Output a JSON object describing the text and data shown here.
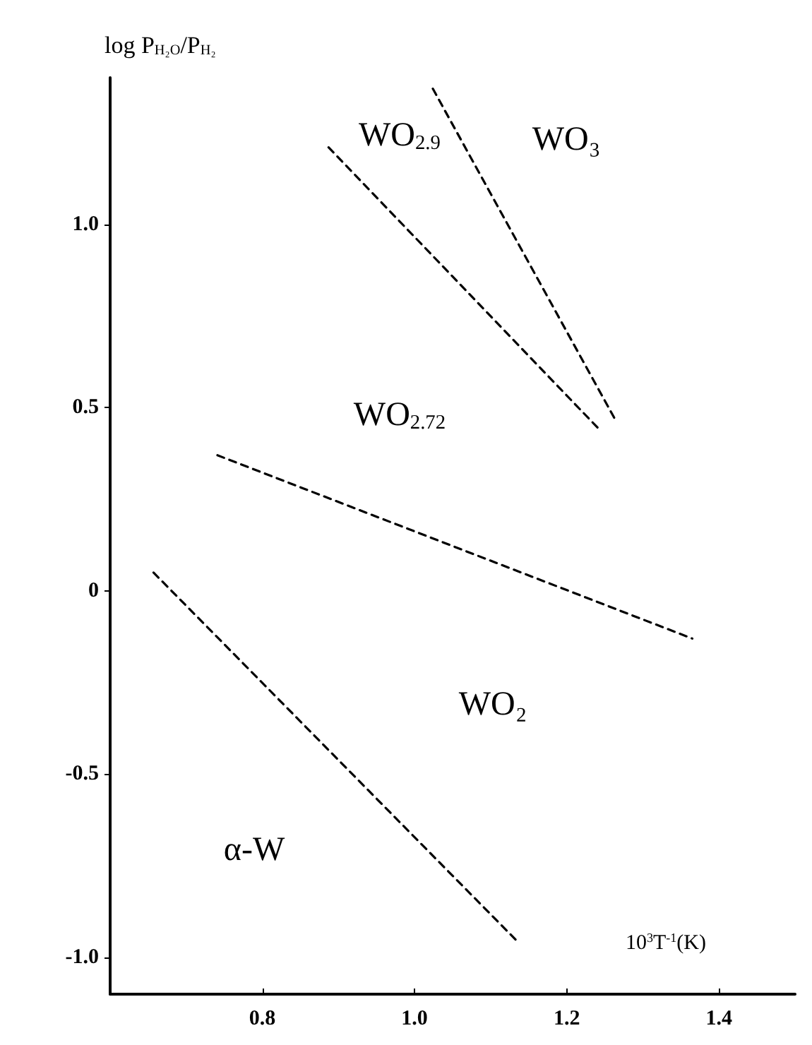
{
  "chart_data": {
    "type": "line",
    "xlabel": "10$^{3}$T$^{-1}$(K)",
    "ylabel": "log P$_{H₂O}$/P$_{H₂}$",
    "line_style": "dashed",
    "marker": "none",
    "grid": false,
    "xlim": [
      0.6,
      1.5
    ],
    "xticks": [
      0.8,
      {
        "value": 1.0,
        "label": "1.0"
      },
      1.2,
      1.4
    ],
    "ylim": [
      -1.1,
      1.4
    ],
    "yticks": [
      {
        "value": -1.0,
        "label": "-1.0"
      },
      -0.5,
      0,
      0.5,
      {
        "value": 1.0,
        "label": "1.0"
      }
    ],
    "series": [
      {
        "color": "#000000",
        "x": [
          0.657,
          1.137
        ],
        "values": [
          0.05,
          -0.96
        ]
      },
      {
        "color": "#000000",
        "x": [
          0.741,
          1.365
        ],
        "values": [
          0.37,
          -0.13
        ]
      },
      {
        "color": "#000000",
        "x": [
          0.887,
          1.243
        ],
        "values": [
          1.21,
          0.44
        ]
      },
      {
        "color": "#000000",
        "x": [
          1.024,
          1.263
        ],
        "values": [
          1.37,
          0.47
        ]
      }
    ],
    "annotations": [
      "WO₃",
      "WO$_{2.9}$",
      "WO$_{2.72}$",
      "WO₂",
      "α-W"
    ]
  }
}
